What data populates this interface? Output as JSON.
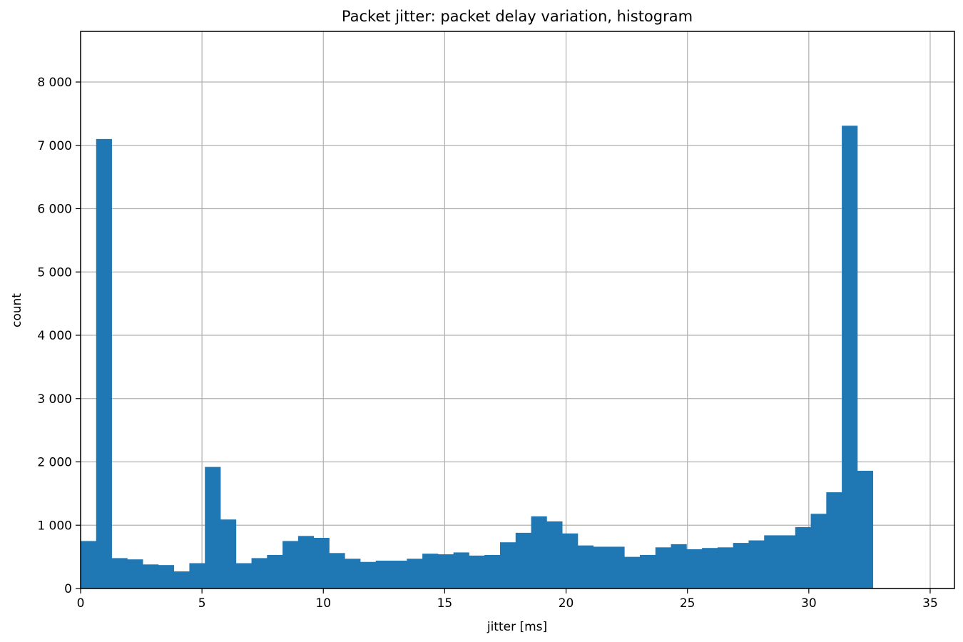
{
  "chart_data": {
    "type": "bar",
    "title": "Packet jitter: packet delay variation, histogram",
    "xlabel": "jitter [ms]",
    "ylabel": "count",
    "xlim": [
      0,
      36
    ],
    "ylim": [
      0,
      8800
    ],
    "grid": true,
    "bar_color": "#1f77b4",
    "grid_color": "#b0b0b0",
    "x_ticks": [
      {
        "value": 0,
        "label": "0"
      },
      {
        "value": 5,
        "label": "5"
      },
      {
        "value": 10,
        "label": "10"
      },
      {
        "value": 15,
        "label": "15"
      },
      {
        "value": 20,
        "label": "20"
      },
      {
        "value": 25,
        "label": "25"
      },
      {
        "value": 30,
        "label": "30"
      },
      {
        "value": 35,
        "label": "35"
      }
    ],
    "y_ticks": [
      {
        "value": 0,
        "label": "0"
      },
      {
        "value": 1000,
        "label": "1 000"
      },
      {
        "value": 2000,
        "label": "2 000"
      },
      {
        "value": 3000,
        "label": "3 000"
      },
      {
        "value": 4000,
        "label": "4 000"
      },
      {
        "value": 5000,
        "label": "5 000"
      },
      {
        "value": 6000,
        "label": "6 000"
      },
      {
        "value": 7000,
        "label": "7 000"
      },
      {
        "value": 8000,
        "label": "8 000"
      }
    ],
    "bin_start": 0,
    "bin_width": 0.64,
    "values": [
      750,
      7100,
      480,
      460,
      380,
      370,
      270,
      400,
      1920,
      1090,
      400,
      480,
      530,
      750,
      830,
      800,
      560,
      470,
      420,
      440,
      440,
      470,
      550,
      540,
      570,
      520,
      530,
      730,
      880,
      1140,
      1060,
      870,
      680,
      660,
      660,
      500,
      530,
      650,
      700,
      620,
      640,
      650,
      720,
      760,
      840,
      840,
      970,
      1180,
      1520,
      7310,
      1860
    ]
  }
}
